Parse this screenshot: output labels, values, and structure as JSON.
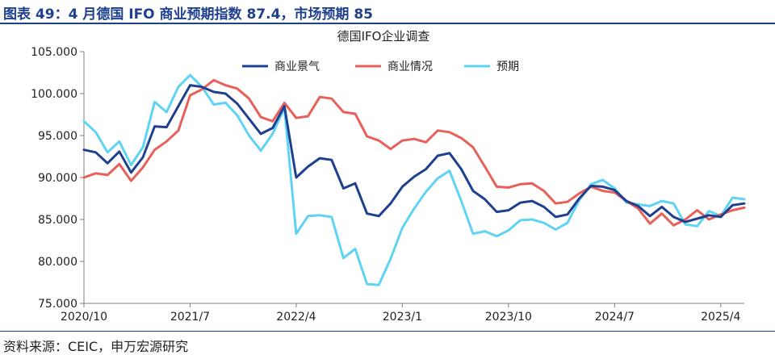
{
  "header": {
    "title": "图表 49：4 月德国 IFO 商业预期指数 87.4，市场预期 85"
  },
  "footer": {
    "source": "资料来源：CEIC，申万宏源研究"
  },
  "chart_data": {
    "type": "line",
    "title": "德国IFO企业调查",
    "ylim": [
      75,
      105
    ],
    "y_ticks": [
      "75.000",
      "80.000",
      "85.000",
      "90.000",
      "95.000",
      "100.000",
      "105.000"
    ],
    "x_tick_labels": [
      "2020/10",
      "2021/7",
      "2022/4",
      "2023/1",
      "2023/10",
      "2024/7",
      "2025/4"
    ],
    "grid": false,
    "legend": "top",
    "series": [
      {
        "name": "商业景气",
        "color": "#1f3f8f",
        "values": [
          93.3,
          93.0,
          91.7,
          93.1,
          90.6,
          92.4,
          96.1,
          96.0,
          98.5,
          101.0,
          100.8,
          100.2,
          100.0,
          98.8,
          97.0,
          95.2,
          95.9,
          98.5,
          90.0,
          91.3,
          92.3,
          92.1,
          88.7,
          89.3,
          85.7,
          85.4,
          86.9,
          88.9,
          90.1,
          91.0,
          92.6,
          92.9,
          91.0,
          88.4,
          87.4,
          85.9,
          86.1,
          87.0,
          87.2,
          86.5,
          85.3,
          85.6,
          87.5,
          89.0,
          88.9,
          88.5,
          87.2,
          86.6,
          85.4,
          86.5,
          85.3,
          84.7,
          85.1,
          85.5,
          85.3,
          86.7,
          86.9
        ]
      },
      {
        "name": "商业情况",
        "color": "#e8605a",
        "values": [
          90.0,
          90.5,
          90.3,
          91.6,
          89.6,
          91.2,
          93.3,
          94.3,
          95.6,
          99.8,
          100.5,
          101.6,
          101.0,
          100.6,
          99.4,
          97.2,
          96.7,
          98.9,
          97.1,
          97.3,
          99.6,
          99.4,
          97.8,
          97.6,
          94.9,
          94.4,
          93.4,
          94.4,
          94.6,
          94.2,
          95.6,
          95.4,
          94.7,
          93.6,
          91.3,
          88.9,
          88.8,
          89.2,
          89.3,
          88.4,
          86.9,
          87.1,
          88.1,
          88.9,
          88.4,
          88.2,
          87.2,
          86.3,
          84.5,
          85.7,
          84.3,
          85.0,
          86.1,
          85.0,
          85.6,
          86.1,
          86.4
        ]
      },
      {
        "name": "预期",
        "color": "#5fd3f3",
        "values": [
          96.7,
          95.4,
          93.0,
          94.3,
          91.5,
          93.6,
          99.0,
          97.8,
          100.8,
          102.2,
          100.8,
          98.7,
          98.9,
          97.4,
          95.0,
          93.2,
          95.2,
          98.3,
          83.3,
          85.4,
          85.5,
          85.3,
          80.4,
          81.5,
          77.3,
          77.2,
          80.3,
          84.0,
          86.3,
          88.3,
          89.9,
          90.8,
          87.2,
          83.3,
          83.6,
          83.0,
          83.7,
          84.9,
          85.0,
          84.6,
          83.8,
          84.6,
          87.3,
          89.2,
          89.7,
          88.7,
          87.0,
          86.8,
          86.6,
          87.2,
          86.9,
          84.4,
          84.2,
          86.0,
          85.4,
          87.6,
          87.4
        ]
      }
    ]
  }
}
